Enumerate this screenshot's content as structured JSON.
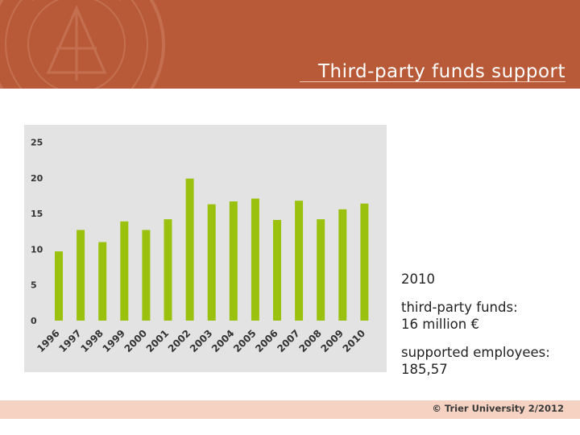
{
  "slide": {
    "title": "Third-party funds support"
  },
  "chart_data": {
    "type": "bar",
    "title": "",
    "xlabel": "",
    "ylabel": "",
    "ylim": [
      0,
      25
    ],
    "yticks": [
      "0",
      "5",
      "10",
      "15",
      "20",
      "25"
    ],
    "categories": [
      "1996",
      "1997",
      "1998",
      "1999",
      "2000",
      "2001",
      "2002",
      "2003",
      "2004",
      "2005",
      "2006",
      "2007",
      "2008",
      "2009",
      "2010"
    ],
    "values": [
      9.7,
      12.7,
      11.0,
      13.9,
      12.7,
      14.2,
      19.9,
      16.3,
      16.7,
      17.1,
      14.1,
      16.8,
      14.2,
      15.6,
      16.4
    ],
    "bar_color": "#9ac10e",
    "background_color": "#e3e3e3"
  },
  "info": {
    "year": "2010",
    "funds_label": "third-party funds:",
    "funds_value": "16 million €",
    "employees_label": "supported employees:",
    "employees_value": "185,57"
  },
  "footer": {
    "copyright": "© Trier University 2/2012"
  },
  "colors": {
    "header": "#b85a38",
    "footer": "#f5d2c2"
  }
}
